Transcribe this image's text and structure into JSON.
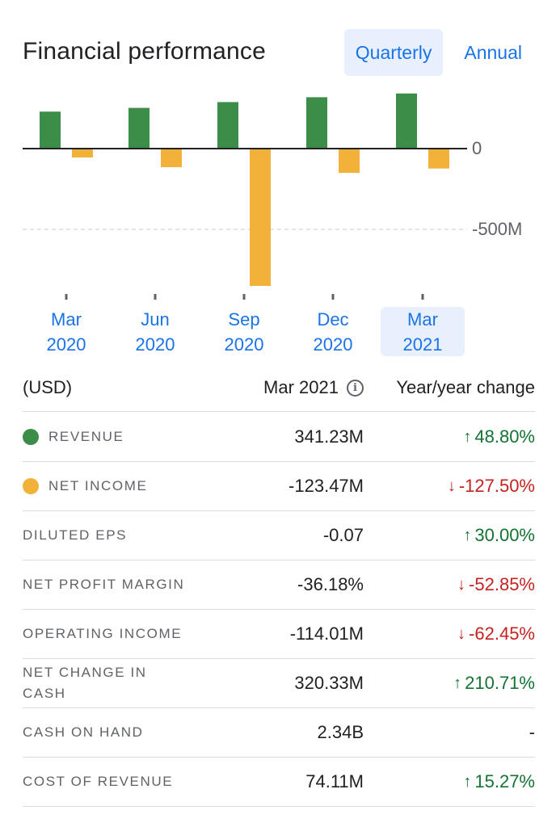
{
  "header": {
    "title": "Financial performance",
    "tabs": [
      {
        "label": "Quarterly",
        "active": true
      },
      {
        "label": "Annual",
        "active": false
      }
    ]
  },
  "chart_data": {
    "type": "bar",
    "categories": [
      "Mar 2020",
      "Jun 2020",
      "Sep 2020",
      "Dec 2020",
      "Mar 2021"
    ],
    "category_lines": [
      [
        "Mar",
        "2020"
      ],
      [
        "Jun",
        "2020"
      ],
      [
        "Sep",
        "2020"
      ],
      [
        "Dec",
        "2020"
      ],
      [
        "Mar",
        "2021"
      ]
    ],
    "selected_category": "Mar 2021",
    "series": [
      {
        "name": "Revenue",
        "color": "#3c8d47",
        "values": [
          229,
          252,
          288,
          318,
          341.23
        ]
      },
      {
        "name": "Net income",
        "color": "#f2b23a",
        "values": [
          -55,
          -115,
          -850,
          -150,
          -123.47
        ]
      }
    ],
    "ytick_labels": [
      "0",
      "-500M"
    ],
    "ytick_values": [
      0,
      -500
    ],
    "ylim": [
      -900,
      360
    ],
    "units": "M",
    "zero_line": true,
    "gridline_at": -500
  },
  "table": {
    "header": {
      "currency": "(USD)",
      "period": "Mar 2021",
      "change": "Year/year change",
      "info_icon": "info-icon"
    },
    "rows": [
      {
        "label": "REVENUE",
        "dot": "#3c8d47",
        "value": "341.23M",
        "change": "48.80%",
        "direction": "up"
      },
      {
        "label": "NET INCOME",
        "dot": "#f2b23a",
        "value": "-123.47M",
        "change": "-127.50%",
        "direction": "down"
      },
      {
        "label": "DILUTED EPS",
        "value": "-0.07",
        "change": "30.00%",
        "direction": "up"
      },
      {
        "label": "NET PROFIT MARGIN",
        "value": "-36.18%",
        "change": "-52.85%",
        "direction": "down"
      },
      {
        "label": "OPERATING INCOME",
        "value": "-114.01M",
        "change": "-62.45%",
        "direction": "down"
      },
      {
        "label": "NET CHANGE IN CASH",
        "value": "320.33M",
        "change": "210.71%",
        "direction": "up"
      },
      {
        "label": "CASH ON HAND",
        "value": "2.34B",
        "change": "-",
        "direction": "none"
      },
      {
        "label": "COST OF REVENUE",
        "value": "74.11M",
        "change": "15.27%",
        "direction": "up"
      }
    ]
  },
  "colors": {
    "accent": "#1a73e8",
    "up": "#137333",
    "down": "#c5221f",
    "selected_bg": "#e8f0fe"
  }
}
